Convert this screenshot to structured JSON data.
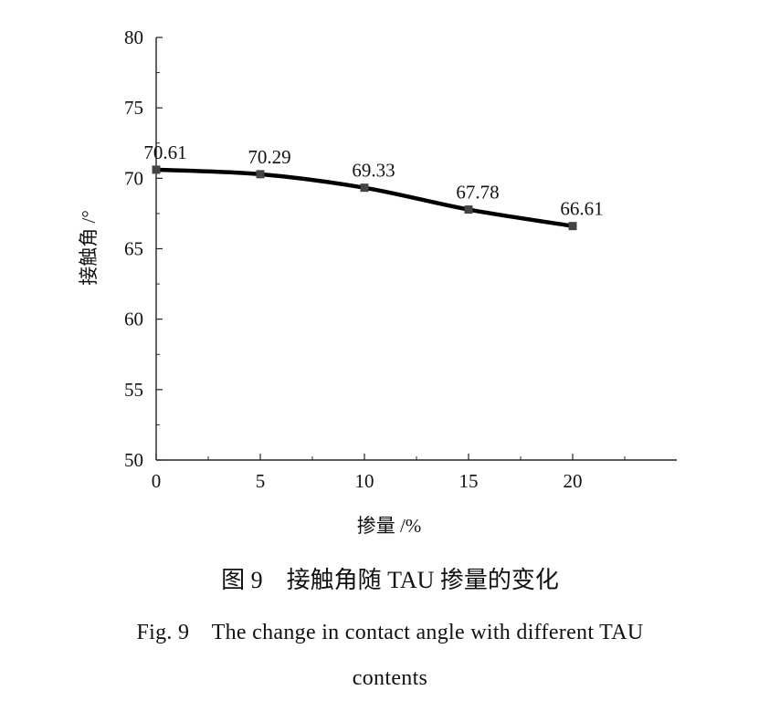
{
  "chart_data": {
    "type": "line",
    "x": [
      0,
      5,
      10,
      15,
      20
    ],
    "series": [
      {
        "values": [
          70.61,
          70.29,
          69.33,
          67.78,
          66.61
        ]
      }
    ],
    "data_labels": [
      "70.61",
      "70.29",
      "69.33",
      "67.78",
      "66.61"
    ],
    "xlabel": "掺量 /%",
    "ylabel": "接触角 /°",
    "xlim": [
      0,
      25
    ],
    "ylim": [
      50,
      80
    ],
    "xticks": [
      0,
      5,
      10,
      15,
      20
    ],
    "yticks": [
      50,
      55,
      60,
      65,
      70,
      75,
      80
    ],
    "grid": false,
    "line_color": "#000000",
    "marker": "square",
    "marker_color": "#444444"
  },
  "caption": {
    "cn": "图 9　接触角随 TAU 掺量的变化",
    "en_line1": "Fig. 9　The change in contact angle with different TAU",
    "en_line2": "contents"
  }
}
